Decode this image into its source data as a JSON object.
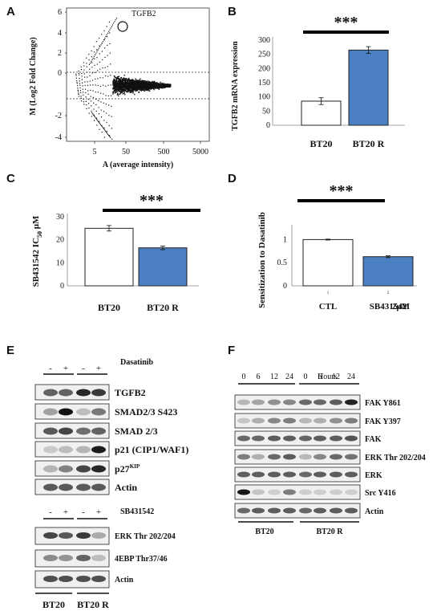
{
  "panels": {
    "A": "A",
    "B": "B",
    "C": "C",
    "D": "D",
    "E": "E",
    "F": "F"
  },
  "panel_a": {
    "ylabel": "M (Log2 Fold Change)",
    "xlabel": "A (average intensity)",
    "annotation": "TGFB2",
    "x_ticks": [
      "5",
      "50",
      "500",
      "5000"
    ],
    "y_ticks": [
      "6",
      "4",
      "2",
      "0",
      "-2",
      "-4"
    ]
  },
  "panel_e": {
    "treatment_top": "Dasatinib",
    "treatment_bottom": "SB431542",
    "minus": "-",
    "plus": "+",
    "top_rows": [
      "TGFB2",
      "SMAD2/3 S423",
      "SMAD 2/3",
      "p21 (CIP1/WAF1)",
      "p27",
      "Actin"
    ],
    "p27_sup": "KIP",
    "bottom_rows": [
      "ERK Thr 202/204",
      "4EBP Thr37/46",
      "Actin"
    ],
    "groups": [
      "BT20",
      "BT20 R"
    ]
  },
  "panel_f": {
    "timepoints": [
      "0",
      "6",
      "12",
      "24",
      "0",
      "6",
      "12",
      "24"
    ],
    "time_unit": "Hours",
    "rows": [
      "FAK Y861",
      "FAK Y397",
      "FAK",
      "ERK Thr 202/204",
      "ERK",
      "Src Y416",
      "Actin"
    ],
    "groups": [
      "BT20",
      "BT20 R"
    ]
  },
  "chart_data": [
    {
      "panel": "B",
      "type": "bar",
      "categories": [
        "BT20",
        "BT20 R"
      ],
      "values": [
        85,
        265
      ],
      "errors": [
        12,
        12
      ],
      "ylabel": "TGFB2 mRNA expression",
      "ylim": [
        0,
        300
      ],
      "yticks": [
        0,
        50,
        100,
        150,
        200,
        250,
        300
      ],
      "significance": "***",
      "colors": [
        "#ffffff",
        "#4a7fc1"
      ]
    },
    {
      "panel": "C",
      "type": "bar",
      "categories": [
        "BT20",
        "BT20 R"
      ],
      "values": [
        25,
        16.5
      ],
      "errors": [
        1.2,
        0.8
      ],
      "ylabel_main": "SB431542  IC",
      "ylabel_sub": "50",
      "ylabel_unit": " μM",
      "ylim": [
        0,
        30
      ],
      "yticks": [
        0,
        10,
        20,
        30
      ],
      "significance": "***",
      "colors": [
        "#ffffff",
        "#4a7fc1"
      ]
    },
    {
      "panel": "D",
      "type": "bar",
      "categories": [
        "CTL",
        "SB431542"
      ],
      "tick_marks": [
        "1",
        "2"
      ],
      "extra_label": "2μM",
      "values": [
        1.0,
        0.63
      ],
      "errors": [
        0.01,
        0.02
      ],
      "ylabel": "Sensitization to Dasatinib",
      "ylim": [
        0,
        1.25
      ],
      "yticks": [
        0,
        0.5,
        1
      ],
      "significance": "***",
      "colors": [
        "#ffffff",
        "#4a7fc1"
      ]
    }
  ]
}
